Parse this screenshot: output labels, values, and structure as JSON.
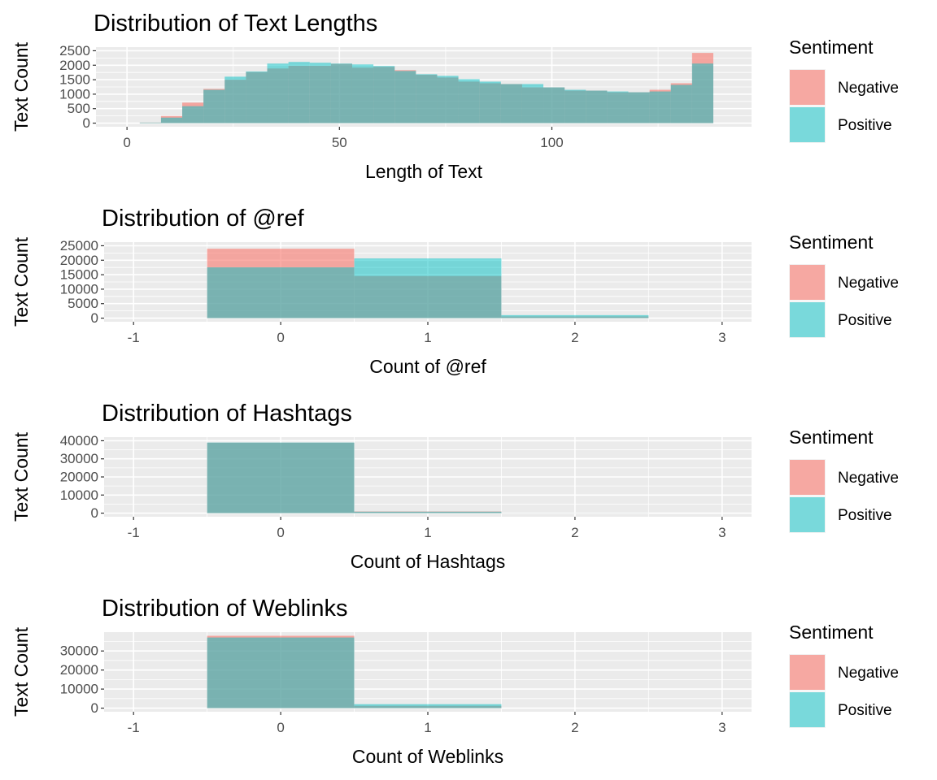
{
  "colors": {
    "negative": "#F8766D",
    "positive": "#00BFC4",
    "panel_bg": "#EBEBEB",
    "grid": "#FFFFFF"
  },
  "chart_data": [
    {
      "type": "bar",
      "subtype": "histogram-overlay",
      "title": "Distribution of Text Lengths",
      "xlabel": "Length of Text",
      "ylabel": "Text Count",
      "xlim": [
        -7.3,
        147
      ],
      "ylim": [
        0,
        2500
      ],
      "x_ticks": [
        0,
        50,
        100
      ],
      "y_ticks": [
        0,
        500,
        1000,
        1500,
        2000,
        2500
      ],
      "bin_width": 5,
      "bin_centers": [
        5.5,
        10.5,
        15.5,
        20.5,
        25.5,
        30.5,
        35.5,
        40.5,
        45.5,
        50.5,
        55.5,
        60.5,
        65.5,
        70.5,
        75.5,
        80.5,
        85.5,
        90.5,
        95.5,
        100.5,
        105.5,
        110.5,
        115.5,
        120.5,
        125.5,
        130.5,
        135.5
      ],
      "series": [
        {
          "name": "Negative",
          "values": [
            20,
            245,
            708,
            1180,
            1500,
            1764,
            1887,
            1981,
            1981,
            2047,
            1915,
            1943,
            1830,
            1670,
            1575,
            1434,
            1377,
            1349,
            1236,
            1236,
            1123,
            1123,
            1066,
            1066,
            1151,
            1377,
            2425
          ]
        },
        {
          "name": "Positive",
          "values": [
            20,
            190,
            585,
            1150,
            1604,
            1783,
            2057,
            2113,
            2085,
            2057,
            2028,
            1972,
            1802,
            1689,
            1632,
            1519,
            1434,
            1349,
            1349,
            1236,
            1151,
            1123,
            1094,
            1066,
            1094,
            1321,
            2057
          ]
        }
      ],
      "grid": true,
      "legend": {
        "title": "Sentiment",
        "position": "right"
      }
    },
    {
      "type": "bar",
      "subtype": "histogram-overlay",
      "title": "Distribution of @ref",
      "xlabel": "Count of @ref",
      "ylabel": "Text Count",
      "xlim": [
        -1.2,
        3.2
      ],
      "ylim": [
        0,
        25000
      ],
      "x_ticks": [
        -1,
        0,
        1,
        2,
        3
      ],
      "y_ticks": [
        0,
        5000,
        10000,
        15000,
        20000,
        25000
      ],
      "bin_width": 1,
      "bin_centers": [
        -1,
        0,
        1,
        2,
        3
      ],
      "series": [
        {
          "name": "Negative",
          "values": [
            0,
            23970,
            14550,
            560,
            0
          ]
        },
        {
          "name": "Positive",
          "values": [
            0,
            17540,
            20620,
            1030,
            0
          ]
        }
      ],
      "grid": true,
      "legend": {
        "title": "Sentiment",
        "position": "right"
      }
    },
    {
      "type": "bar",
      "subtype": "histogram-overlay",
      "title": "Distribution of Hashtags",
      "xlabel": "Count of Hashtags",
      "ylabel": "Text Count",
      "xlim": [
        -1.2,
        3.2
      ],
      "ylim": [
        0,
        40000
      ],
      "x_ticks": [
        -1,
        0,
        1,
        2,
        3
      ],
      "y_ticks": [
        0,
        10000,
        20000,
        30000,
        40000
      ],
      "bin_width": 1,
      "bin_centers": [
        -1,
        0,
        1,
        2,
        3
      ],
      "series": [
        {
          "name": "Negative",
          "values": [
            0,
            38900,
            900,
            50,
            0
          ]
        },
        {
          "name": "Positive",
          "values": [
            0,
            39000,
            800,
            50,
            0
          ]
        }
      ],
      "grid": true,
      "legend": {
        "title": "Sentiment",
        "position": "right"
      }
    },
    {
      "type": "bar",
      "subtype": "histogram-overlay",
      "title": "Distribution of Weblinks",
      "xlabel": "Count of Weblinks",
      "ylabel": "Text Count",
      "xlim": [
        -1.2,
        3.2
      ],
      "ylim": [
        0,
        38000
      ],
      "x_ticks": [
        -1,
        0,
        1,
        2,
        3
      ],
      "y_ticks": [
        0,
        10000,
        20000,
        30000
      ],
      "bin_width": 1,
      "bin_centers": [
        -1,
        0,
        1,
        2,
        3
      ],
      "series": [
        {
          "name": "Negative",
          "values": [
            0,
            37970,
            1180,
            0,
            0
          ]
        },
        {
          "name": "Positive",
          "values": [
            0,
            37080,
            2070,
            0,
            0
          ]
        }
      ],
      "grid": true,
      "legend": {
        "title": "Sentiment",
        "position": "right"
      }
    }
  ]
}
